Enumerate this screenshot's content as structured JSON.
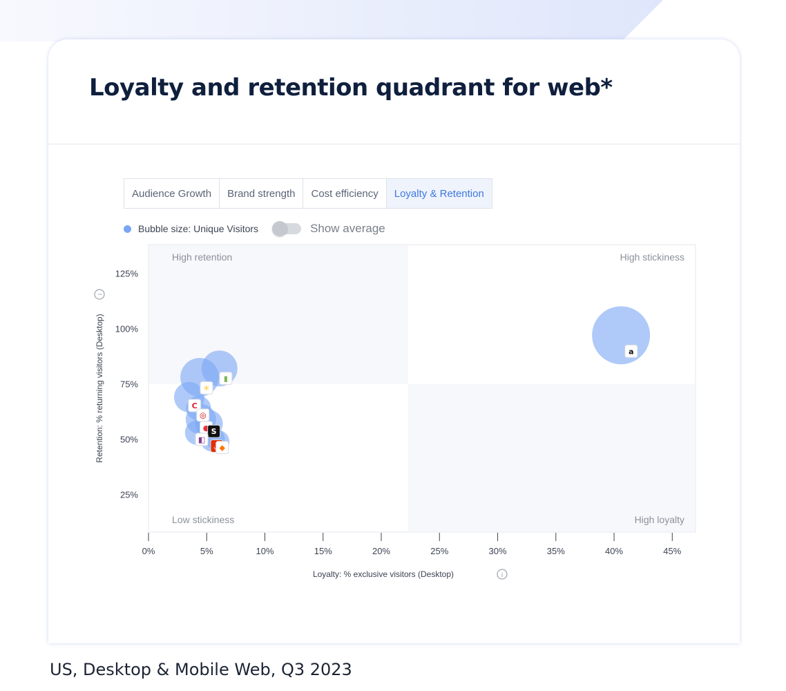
{
  "header": {
    "title": "Loyalty and retention quadrant for web*"
  },
  "tabs": [
    {
      "label": "Audience Growth",
      "active": false
    },
    {
      "label": "Brand strength",
      "active": false
    },
    {
      "label": "Cost efficiency",
      "active": false
    },
    {
      "label": "Loyalty & Retention",
      "active": true
    }
  ],
  "legend": {
    "bubble_size_label": "Bubble size: Unique Visitors",
    "toggle_label": "Show average",
    "toggle_on": false
  },
  "colors": {
    "accent": "#3f78e0",
    "bubble": "#7aa6f5",
    "quadrant_shade": "#f7f8fb"
  },
  "caption": "US, Desktop & Mobile Web, Q3 2023",
  "chart_data": {
    "type": "scatter",
    "xlabel": "Loyalty: % exclusive visitors (Desktop)",
    "ylabel": "Retention: % returning visitors (Desktop)",
    "xlim": [
      0,
      47
    ],
    "ylim": [
      8,
      138
    ],
    "x_ticks": [
      0,
      5,
      10,
      15,
      20,
      25,
      30,
      35,
      40,
      45
    ],
    "x_tick_labels": [
      "0%",
      "5%",
      "10%",
      "15%",
      "20%",
      "25%",
      "30%",
      "35%",
      "40%",
      "45%"
    ],
    "y_ticks": [
      25,
      50,
      75,
      100,
      125
    ],
    "y_tick_labels": [
      "25%",
      "50%",
      "75%",
      "100%",
      "125%"
    ],
    "x_divider": 22.3,
    "y_divider": 75,
    "quadrant_labels": {
      "top_left": "High retention",
      "top_right": "High stickiness",
      "bottom_left": "Low stickiness",
      "bottom_right": "High loyalty"
    },
    "points": [
      {
        "icon": "amazon-icon",
        "x": 40.6,
        "y": 97,
        "size": 42
      },
      {
        "icon": "shopify-icon",
        "x": 6.1,
        "y": 82,
        "size": 26
      },
      {
        "icon": "walmart-icon",
        "x": 4.4,
        "y": 78,
        "size": 28
      },
      {
        "icon": "costco-icon",
        "x": 3.5,
        "y": 69,
        "size": 22
      },
      {
        "icon": "target-icon",
        "x": 4.3,
        "y": 64,
        "size": 18
      },
      {
        "icon": "ebay-icon",
        "x": 4.5,
        "y": 59,
        "size": 22
      },
      {
        "icon": "etsy-icon",
        "x": 5.2,
        "y": 57,
        "size": 20
      },
      {
        "icon": "shein-icon",
        "x": 4.2,
        "y": 53,
        "size": 18
      },
      {
        "icon": "aliexpress-icon",
        "x": 5.5,
        "y": 50,
        "size": 18
      },
      {
        "icon": "temu-icon",
        "x": 6.0,
        "y": 49,
        "size": 16
      }
    ]
  }
}
